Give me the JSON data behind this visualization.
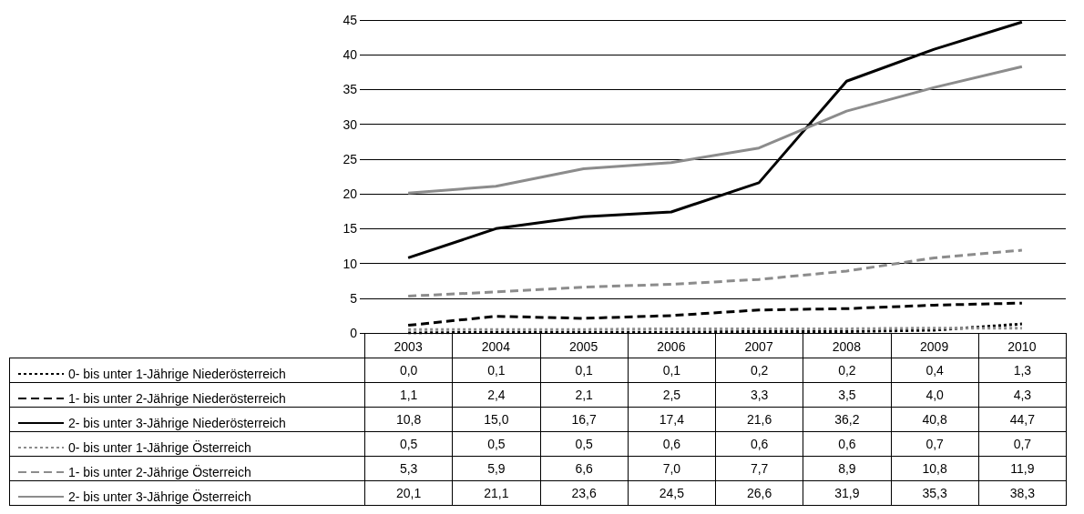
{
  "chart_data": {
    "type": "line",
    "categories": [
      "2003",
      "2004",
      "2005",
      "2006",
      "2007",
      "2008",
      "2009",
      "2010"
    ],
    "series": [
      {
        "name": "0- bis unter 1-Jährige Niederösterreich",
        "color": "#000000",
        "line_style": "dotted",
        "values": [
          0.0,
          0.1,
          0.1,
          0.1,
          0.2,
          0.2,
          0.4,
          1.3
        ],
        "value_labels": [
          "0,0",
          "0,1",
          "0,1",
          "0,1",
          "0,2",
          "0,2",
          "0,4",
          "1,3"
        ]
      },
      {
        "name": "1- bis unter 2-Jährige Niederösterreich",
        "color": "#000000",
        "line_style": "dashed",
        "values": [
          1.1,
          2.4,
          2.1,
          2.5,
          3.3,
          3.5,
          4.0,
          4.3
        ],
        "value_labels": [
          "1,1",
          "2,4",
          "2,1",
          "2,5",
          "3,3",
          "3,5",
          "4,0",
          "4,3"
        ]
      },
      {
        "name": "2- bis unter 3-Jährige Niederösterreich",
        "color": "#000000",
        "line_style": "solid",
        "values": [
          10.8,
          15.0,
          16.7,
          17.4,
          21.6,
          36.2,
          40.8,
          44.7
        ],
        "value_labels": [
          "10,8",
          "15,0",
          "16,7",
          "17,4",
          "21,6",
          "36,2",
          "40,8",
          "44,7"
        ]
      },
      {
        "name": "0- bis unter 1-Jährige Österreich",
        "color": "#8c8c8c",
        "line_style": "dotted",
        "values": [
          0.5,
          0.5,
          0.5,
          0.6,
          0.6,
          0.6,
          0.7,
          0.7
        ],
        "value_labels": [
          "0,5",
          "0,5",
          "0,5",
          "0,6",
          "0,6",
          "0,6",
          "0,7",
          "0,7"
        ]
      },
      {
        "name": "1- bis unter 2-Jährige Österreich",
        "color": "#8c8c8c",
        "line_style": "dashed",
        "values": [
          5.3,
          5.9,
          6.6,
          7.0,
          7.7,
          8.9,
          10.8,
          11.9
        ],
        "value_labels": [
          "5,3",
          "5,9",
          "6,6",
          "7,0",
          "7,7",
          "8,9",
          "10,8",
          "11,9"
        ]
      },
      {
        "name": "2- bis unter 3-Jährige Österreich",
        "color": "#8c8c8c",
        "line_style": "solid",
        "values": [
          20.1,
          21.1,
          23.6,
          24.5,
          26.6,
          31.9,
          35.3,
          38.3
        ],
        "value_labels": [
          "20,1",
          "21,1",
          "23,6",
          "24,5",
          "26,6",
          "31,9",
          "35,3",
          "38,3"
        ]
      }
    ],
    "ylim": [
      0,
      45
    ],
    "yticks": [
      0,
      5,
      10,
      15,
      20,
      25,
      30,
      35,
      40,
      45
    ],
    "grid": "y",
    "legend": "bottom left",
    "marker": "none"
  }
}
